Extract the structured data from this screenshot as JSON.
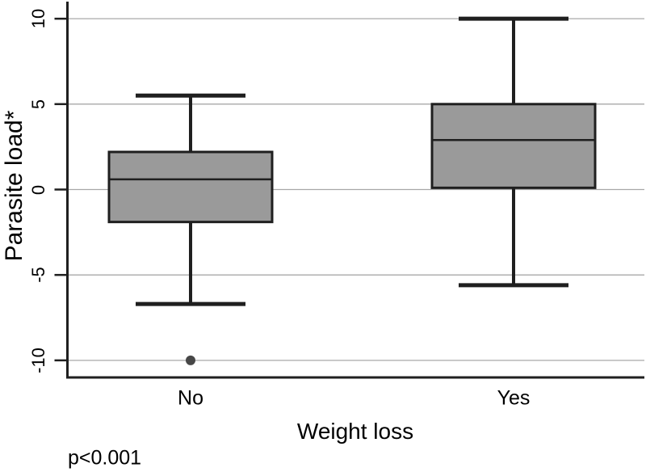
{
  "chart_data": {
    "type": "box",
    "title": "",
    "xlabel": "Weight loss",
    "ylabel": "Parasite load*",
    "annotation": "p<0.001",
    "categories": [
      "No",
      "Yes"
    ],
    "yticks": [
      10,
      5,
      0,
      -5,
      -10
    ],
    "ylim": [
      -11,
      11
    ],
    "grid": true,
    "legend": "none",
    "series": [
      {
        "category": "No",
        "whisker_low": -6.7,
        "q1": -1.9,
        "median": 0.6,
        "q3": 2.2,
        "whisker_high": 5.5,
        "outliers": [
          -10
        ]
      },
      {
        "category": "Yes",
        "whisker_low": -5.6,
        "q1": 0.1,
        "median": 2.9,
        "q3": 5.0,
        "whisker_high": 10,
        "outliers": []
      }
    ],
    "colors": {
      "box_fill": "#9a9a9a",
      "box_border": "#1f1f1f",
      "gridline": "#a8a8a8",
      "axis": "#1f1f1f",
      "outlier": "#474747",
      "text": "#000000",
      "background": "#ffffff"
    }
  }
}
